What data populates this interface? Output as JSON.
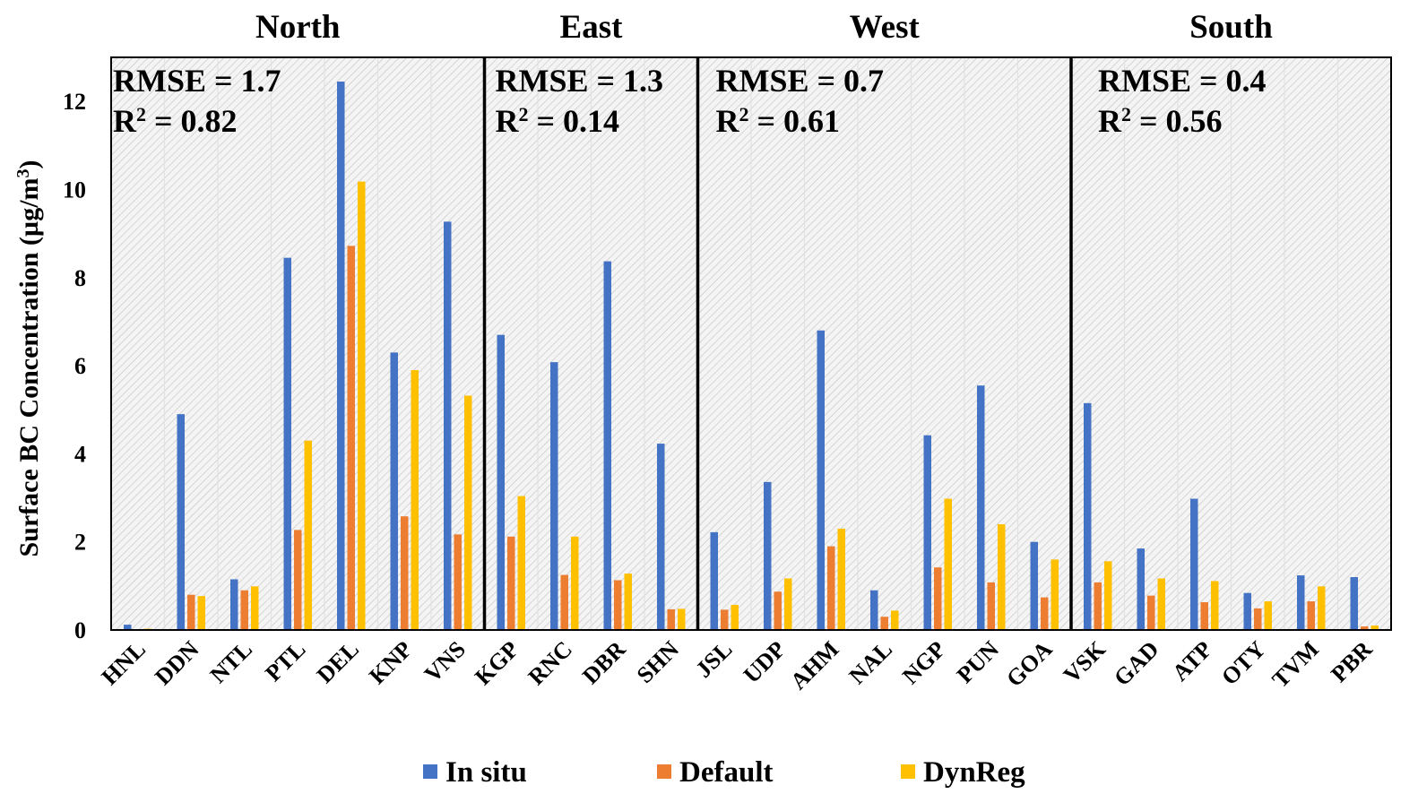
{
  "chart_data": {
    "type": "bar",
    "ylabel_main": "Surface BC Concentration (µg/m",
    "ylabel_sup": "3",
    "ylabel_end": ")",
    "ylim": [
      0,
      13
    ],
    "yticks": [
      "0",
      "2",
      "4",
      "6",
      "8",
      "10",
      "12"
    ],
    "categories": [
      "HNL",
      "DDN",
      "NTL",
      "PTL",
      "DEL",
      "KNP",
      "VNS",
      "KGP",
      "RNC",
      "DBR",
      "SHN",
      "JSL",
      "UDP",
      "AHM",
      "NAL",
      "NGP",
      "PUN",
      "GOA",
      "VSK",
      "GAD",
      "ATP",
      "OTY",
      "TVM",
      "PBR"
    ],
    "series": [
      {
        "name": "In situ",
        "color": "#4472C4",
        "values": [
          0.12,
          4.9,
          1.15,
          8.45,
          12.45,
          6.3,
          9.27,
          6.7,
          6.08,
          8.37,
          4.23,
          2.22,
          3.36,
          6.8,
          0.9,
          4.42,
          5.55,
          2.0,
          5.15,
          1.85,
          2.98,
          0.84,
          1.24,
          1.2
        ]
      },
      {
        "name": "Default",
        "color": "#ED7D31",
        "values": [
          0.02,
          0.8,
          0.9,
          2.27,
          8.72,
          2.58,
          2.17,
          2.12,
          1.25,
          1.13,
          0.47,
          0.46,
          0.87,
          1.9,
          0.3,
          1.42,
          1.08,
          0.74,
          1.08,
          0.78,
          0.63,
          0.49,
          0.65,
          0.08
        ]
      },
      {
        "name": "DynReg",
        "color": "#FFC000",
        "values": [
          0.03,
          0.77,
          0.99,
          4.3,
          10.18,
          5.9,
          5.32,
          3.04,
          2.12,
          1.28,
          0.48,
          0.57,
          1.17,
          2.3,
          0.44,
          2.98,
          2.4,
          1.6,
          1.56,
          1.17,
          1.11,
          0.65,
          0.99,
          0.1
        ]
      }
    ],
    "regions": [
      {
        "name": "North",
        "start": 0,
        "end": 6,
        "rmse": "RMSE = 1.7",
        "r2_prefix": "R",
        "r2_sup": "2",
        "r2_value": " = 0.82"
      },
      {
        "name": "East",
        "start": 7,
        "end": 10,
        "rmse": "RMSE = 1.3",
        "r2_prefix": "R",
        "r2_sup": "2",
        "r2_value": " = 0.14"
      },
      {
        "name": "West",
        "start": 11,
        "end": 17,
        "rmse": "RMSE = 0.7",
        "r2_prefix": "R",
        "r2_sup": "2",
        "r2_value": " = 0.61"
      },
      {
        "name": "South",
        "start": 18,
        "end": 23,
        "rmse": "RMSE = 0.4",
        "r2_prefix": "R",
        "r2_sup": "2",
        "r2_value": " = 0.56"
      }
    ],
    "legend_position": "bottom-center"
  }
}
